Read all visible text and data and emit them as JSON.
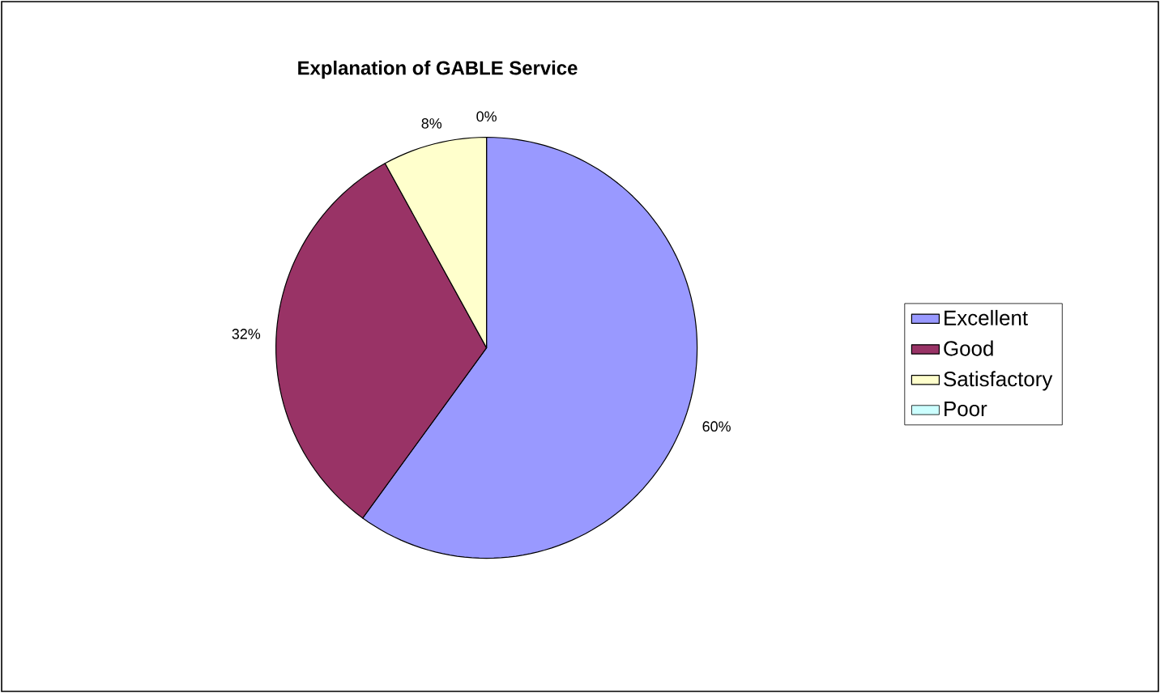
{
  "chart_data": {
    "type": "pie",
    "title": "Explanation of GABLE Service",
    "categories": [
      "Excellent",
      "Good",
      "Satisfactory",
      "Poor"
    ],
    "values": [
      60,
      32,
      8,
      0
    ],
    "colors": [
      "#9999ff",
      "#993366",
      "#ffffcc",
      "#ccffff"
    ],
    "value_labels": [
      "60%",
      "32%",
      "8%",
      "0%"
    ],
    "legend": "right"
  }
}
